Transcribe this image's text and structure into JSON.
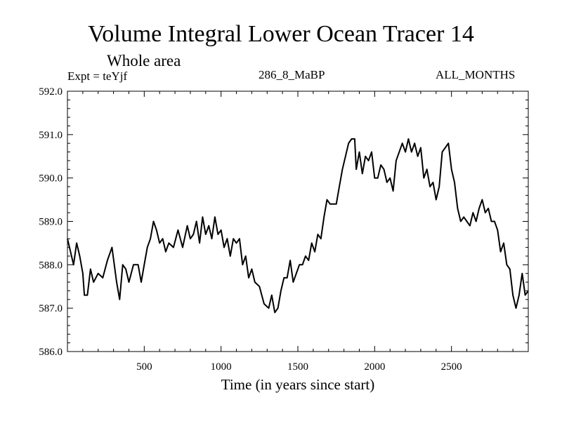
{
  "chart_data": {
    "type": "line",
    "title": "Volume Integral Lower Ocean Tracer 14",
    "subtitle": "Whole area",
    "expt_label": "Expt = teYjf",
    "run_label": "286_8_MaBP",
    "period_label": "ALL_MONTHS",
    "xlabel": "Time (in years since start)",
    "ylabel": "",
    "xlim": [
      0,
      3000
    ],
    "ylim": [
      586.0,
      592.0
    ],
    "x_ticks": [
      500,
      1000,
      1500,
      2000,
      2500
    ],
    "x_tick_labels": [
      "500",
      "1000",
      "1500",
      "2000",
      "2500"
    ],
    "y_ticks": [
      586.0,
      587.0,
      588.0,
      589.0,
      590.0,
      591.0,
      592.0
    ],
    "y_tick_labels": [
      "586.0",
      "587.0",
      "588.0",
      "589.0",
      "590.0",
      "591.0",
      "592.0"
    ],
    "line_color": "#000000",
    "series": [
      {
        "name": "Volume Integral Lower Ocean Tracer 14",
        "x": [
          0,
          20,
          40,
          60,
          80,
          100,
          110,
          130,
          150,
          170,
          200,
          230,
          260,
          290,
          320,
          340,
          360,
          380,
          400,
          430,
          460,
          480,
          500,
          520,
          540,
          560,
          580,
          600,
          620,
          640,
          660,
          690,
          720,
          750,
          780,
          800,
          820,
          840,
          860,
          880,
          900,
          920,
          940,
          960,
          980,
          1000,
          1020,
          1040,
          1060,
          1080,
          1100,
          1120,
          1140,
          1160,
          1180,
          1200,
          1220,
          1250,
          1280,
          1310,
          1330,
          1350,
          1370,
          1390,
          1410,
          1430,
          1450,
          1470,
          1490,
          1510,
          1530,
          1550,
          1570,
          1590,
          1610,
          1630,
          1650,
          1670,
          1690,
          1710,
          1730,
          1750,
          1770,
          1790,
          1810,
          1830,
          1850,
          1870,
          1880,
          1900,
          1920,
          1940,
          1960,
          1980,
          2000,
          2020,
          2040,
          2060,
          2080,
          2100,
          2120,
          2140,
          2160,
          2180,
          2200,
          2220,
          2240,
          2260,
          2280,
          2300,
          2320,
          2340,
          2360,
          2380,
          2400,
          2420,
          2440,
          2460,
          2480,
          2500,
          2520,
          2540,
          2560,
          2580,
          2600,
          2620,
          2640,
          2660,
          2680,
          2700,
          2720,
          2740,
          2760,
          2780,
          2800,
          2820,
          2840,
          2860,
          2880,
          2900,
          2920,
          2940,
          2960,
          2980,
          3000
        ],
        "values": [
          588.6,
          588.3,
          588.0,
          588.5,
          588.2,
          587.8,
          587.3,
          587.3,
          587.9,
          587.6,
          587.8,
          587.7,
          588.1,
          588.4,
          587.6,
          587.2,
          588.0,
          587.9,
          587.6,
          588.0,
          588.0,
          587.6,
          588.0,
          588.4,
          588.6,
          589.0,
          588.8,
          588.5,
          588.6,
          588.3,
          588.5,
          588.4,
          588.8,
          588.4,
          588.9,
          588.6,
          588.7,
          589.0,
          588.5,
          589.1,
          588.7,
          588.9,
          588.6,
          589.1,
          588.7,
          588.8,
          588.4,
          588.6,
          588.2,
          588.6,
          588.5,
          588.6,
          588.0,
          588.2,
          587.7,
          587.9,
          587.6,
          587.5,
          587.1,
          587.0,
          587.3,
          586.9,
          587.0,
          587.4,
          587.7,
          587.7,
          588.1,
          587.6,
          587.8,
          588.0,
          588.0,
          588.2,
          588.1,
          588.5,
          588.3,
          588.7,
          588.6,
          589.1,
          589.5,
          589.4,
          589.4,
          589.4,
          589.8,
          590.2,
          590.5,
          590.8,
          590.9,
          590.9,
          590.2,
          590.6,
          590.1,
          590.5,
          590.4,
          590.6,
          590.0,
          590.0,
          590.3,
          590.2,
          589.9,
          590.0,
          589.7,
          590.4,
          590.6,
          590.8,
          590.6,
          590.9,
          590.6,
          590.8,
          590.5,
          590.7,
          590.0,
          590.2,
          589.8,
          589.9,
          589.5,
          589.8,
          590.6,
          590.7,
          590.8,
          590.2,
          589.9,
          589.3,
          589.0,
          589.1,
          589.0,
          588.9,
          589.2,
          589.0,
          589.3,
          589.5,
          589.2,
          589.3,
          589.0,
          589.0,
          588.8,
          588.3,
          588.5,
          588.0,
          587.9,
          587.3,
          587.0,
          587.3,
          587.8,
          587.3,
          587.4
        ]
      }
    ]
  }
}
